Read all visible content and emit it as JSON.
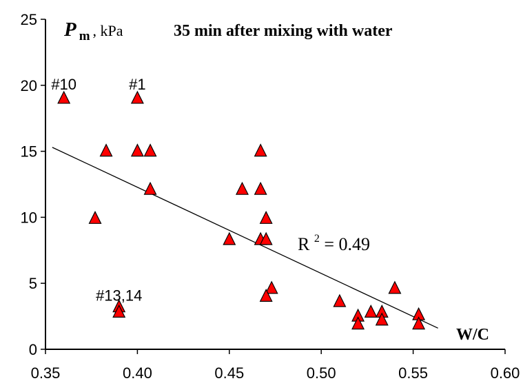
{
  "chart_data": {
    "type": "scatter",
    "title": "35 min after mixing with water",
    "ylabel_symbol": "P",
    "ylabel_subscript": "m",
    "ylabel_unit": ", kPa",
    "xlabel": "W/C",
    "xlim": [
      0.35,
      0.6
    ],
    "ylim": [
      0,
      25
    ],
    "xticks": [
      "0.35",
      "0.40",
      "0.45",
      "0.50",
      "0.55",
      "0.60"
    ],
    "yticks": [
      "0",
      "5",
      "10",
      "15",
      "20",
      "25"
    ],
    "grid": false,
    "marker_color": "#ff0000",
    "marker_edge_color": "#000000",
    "trendline": {
      "x": [
        0.3537,
        0.5635
      ],
      "y": [
        15.3,
        1.6
      ]
    },
    "r2_prefix": "R",
    "r2_exponent": "2",
    "r2_value": " = 0.49",
    "annotations": [
      {
        "text": "#10",
        "x": 0.36,
        "y": 19.0
      },
      {
        "text": "#1",
        "x": 0.4,
        "y": 19.0
      },
      {
        "text": "#13,14",
        "x": 0.39,
        "y": 3.0
      }
    ],
    "points": [
      {
        "x": 0.36,
        "y": 19.0
      },
      {
        "x": 0.4,
        "y": 19.0
      },
      {
        "x": 0.383,
        "y": 15.0
      },
      {
        "x": 0.4,
        "y": 15.0
      },
      {
        "x": 0.407,
        "y": 15.0
      },
      {
        "x": 0.407,
        "y": 12.1
      },
      {
        "x": 0.377,
        "y": 9.9
      },
      {
        "x": 0.39,
        "y": 3.2
      },
      {
        "x": 0.39,
        "y": 2.8
      },
      {
        "x": 0.45,
        "y": 8.3
      },
      {
        "x": 0.457,
        "y": 12.1
      },
      {
        "x": 0.467,
        "y": 15.0
      },
      {
        "x": 0.467,
        "y": 12.1
      },
      {
        "x": 0.467,
        "y": 8.3
      },
      {
        "x": 0.47,
        "y": 9.9
      },
      {
        "x": 0.47,
        "y": 8.3
      },
      {
        "x": 0.473,
        "y": 4.6
      },
      {
        "x": 0.47,
        "y": 4.0
      },
      {
        "x": 0.51,
        "y": 3.6
      },
      {
        "x": 0.52,
        "y": 2.5
      },
      {
        "x": 0.52,
        "y": 1.9
      },
      {
        "x": 0.527,
        "y": 2.8
      },
      {
        "x": 0.533,
        "y": 2.8
      },
      {
        "x": 0.533,
        "y": 2.2
      },
      {
        "x": 0.54,
        "y": 4.6
      },
      {
        "x": 0.553,
        "y": 2.6
      },
      {
        "x": 0.553,
        "y": 1.9
      }
    ]
  }
}
